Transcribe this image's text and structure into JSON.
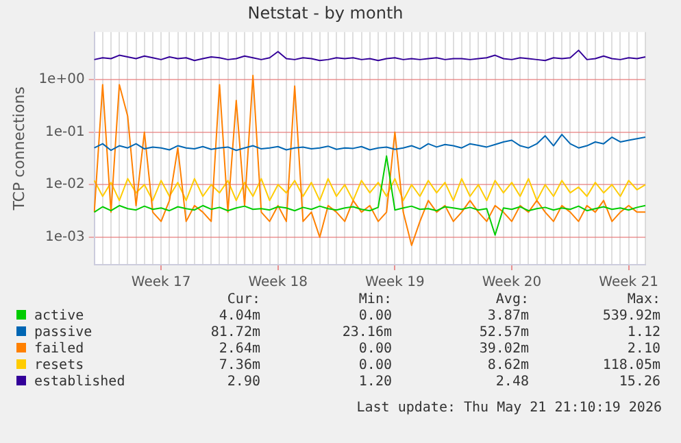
{
  "chart_data": {
    "type": "line",
    "title": "Netstat - by month",
    "ylabel": "TCP connections",
    "log": true,
    "grid": true,
    "legend": "bottom",
    "marker": "none",
    "line_style": "solid",
    "ylim": [
      0.0003,
      8
    ],
    "yticks": [
      {
        "value": 0.001,
        "label": "1e-03"
      },
      {
        "value": 0.01,
        "label": "1e-02"
      },
      {
        "value": 0.1,
        "label": "1e-01"
      },
      {
        "value": 1,
        "label": "1e+00"
      }
    ],
    "categories": [
      null,
      null,
      null,
      null,
      null,
      null,
      null,
      null,
      "Week 17",
      null,
      null,
      null,
      null,
      null,
      null,
      null,
      null,
      null,
      null,
      null,
      null,
      null,
      "Week 18",
      null,
      null,
      null,
      null,
      null,
      null,
      null,
      null,
      null,
      null,
      null,
      null,
      null,
      "Week 19",
      null,
      null,
      null,
      null,
      null,
      null,
      null,
      null,
      null,
      null,
      null,
      null,
      null,
      "Week 20",
      null,
      null,
      null,
      null,
      null,
      null,
      null,
      null,
      null,
      null,
      null,
      null,
      null,
      "Week 21",
      null,
      null
    ],
    "series": [
      {
        "name": "active",
        "color": "#00cc00",
        "values": [
          0.003,
          0.0038,
          0.0032,
          0.004,
          0.0035,
          0.0033,
          0.0039,
          0.0034,
          0.0036,
          0.0032,
          0.0038,
          0.0035,
          0.0033,
          0.004,
          0.0034,
          0.0037,
          0.0032,
          0.0036,
          0.0039,
          0.0034,
          0.0035,
          0.0033,
          0.0038,
          0.0036,
          0.0032,
          0.0037,
          0.0034,
          0.0039,
          0.0035,
          0.0033,
          0.0036,
          0.0038,
          0.0034,
          0.0032,
          0.0037,
          0.035,
          0.0033,
          0.0036,
          0.0039,
          0.0034,
          0.0035,
          0.0032,
          0.0038,
          0.0036,
          0.0034,
          0.0037,
          0.0033,
          0.0035,
          0.0011,
          0.0036,
          0.0034,
          0.0038,
          0.0032,
          0.0035,
          0.0037,
          0.0033,
          0.0036,
          0.0034,
          0.0039,
          0.0032,
          0.0035,
          0.0038,
          0.0034,
          0.0036,
          0.0033,
          0.0037,
          0.004
        ]
      },
      {
        "name": "passive",
        "color": "#0066b3",
        "values": [
          0.05,
          0.06,
          0.045,
          0.055,
          0.05,
          0.06,
          0.048,
          0.052,
          0.05,
          0.046,
          0.055,
          0.05,
          0.048,
          0.053,
          0.047,
          0.05,
          0.052,
          0.045,
          0.05,
          0.055,
          0.048,
          0.05,
          0.053,
          0.046,
          0.05,
          0.052,
          0.048,
          0.05,
          0.054,
          0.047,
          0.05,
          0.049,
          0.053,
          0.046,
          0.05,
          0.052,
          0.047,
          0.05,
          0.055,
          0.048,
          0.06,
          0.052,
          0.058,
          0.055,
          0.05,
          0.06,
          0.056,
          0.052,
          0.058,
          0.065,
          0.07,
          0.055,
          0.05,
          0.06,
          0.085,
          0.055,
          0.09,
          0.06,
          0.05,
          0.055,
          0.065,
          0.06,
          0.08,
          0.065,
          0.07,
          0.075,
          0.08
        ]
      },
      {
        "name": "failed",
        "color": "#ff8000",
        "values": [
          0.003,
          0.8,
          0.003,
          0.8,
          0.2,
          0.004,
          0.1,
          0.003,
          0.002,
          0.005,
          0.05,
          0.002,
          0.004,
          0.003,
          0.002,
          0.8,
          0.003,
          0.4,
          0.004,
          1.2,
          0.003,
          0.002,
          0.004,
          0.002,
          0.75,
          0.002,
          0.003,
          0.001,
          0.004,
          0.003,
          0.002,
          0.005,
          0.003,
          0.004,
          0.002,
          0.003,
          0.1,
          0.003,
          0.0007,
          0.002,
          0.005,
          0.003,
          0.004,
          0.002,
          0.003,
          0.005,
          0.003,
          0.002,
          0.004,
          0.003,
          0.002,
          0.004,
          0.003,
          0.005,
          0.003,
          0.002,
          0.004,
          0.003,
          0.002,
          0.004,
          0.003,
          0.005,
          0.002,
          0.003,
          0.004,
          0.003,
          0.003
        ]
      },
      {
        "name": "resets",
        "color": "#ffcc00",
        "values": [
          0.012,
          0.006,
          0.011,
          0.005,
          0.013,
          0.007,
          0.01,
          0.005,
          0.012,
          0.006,
          0.011,
          0.005,
          0.013,
          0.006,
          0.01,
          0.007,
          0.012,
          0.005,
          0.011,
          0.006,
          0.013,
          0.005,
          0.01,
          0.007,
          0.012,
          0.006,
          0.011,
          0.005,
          0.013,
          0.006,
          0.01,
          0.005,
          0.012,
          0.007,
          0.011,
          0.006,
          0.013,
          0.005,
          0.01,
          0.006,
          0.012,
          0.007,
          0.011,
          0.005,
          0.013,
          0.006,
          0.01,
          0.005,
          0.012,
          0.007,
          0.011,
          0.006,
          0.013,
          0.005,
          0.01,
          0.006,
          0.012,
          0.007,
          0.009,
          0.006,
          0.011,
          0.007,
          0.01,
          0.006,
          0.012,
          0.008,
          0.01
        ]
      },
      {
        "name": "established",
        "color": "#330099",
        "values": [
          2.4,
          2.6,
          2.5,
          2.9,
          2.7,
          2.5,
          2.8,
          2.6,
          2.4,
          2.7,
          2.5,
          2.6,
          2.3,
          2.5,
          2.7,
          2.6,
          2.4,
          2.5,
          2.8,
          2.6,
          2.4,
          2.6,
          3.4,
          2.5,
          2.4,
          2.6,
          2.5,
          2.3,
          2.4,
          2.6,
          2.5,
          2.6,
          2.4,
          2.5,
          2.3,
          2.5,
          2.6,
          2.4,
          2.5,
          2.4,
          2.5,
          2.6,
          2.4,
          2.5,
          2.5,
          2.4,
          2.5,
          2.6,
          2.9,
          2.5,
          2.4,
          2.6,
          2.5,
          2.4,
          2.3,
          2.6,
          2.5,
          2.6,
          3.6,
          2.4,
          2.5,
          2.8,
          2.5,
          2.4,
          2.6,
          2.5,
          2.7
        ]
      }
    ],
    "annotations": [
      "Cur:",
      "Min:",
      "Avg:",
      "Max:",
      "4.04m",
      "0.00",
      "3.87m",
      "539.92m",
      "81.72m",
      "23.16m",
      "52.57m",
      "1.12",
      "2.64m",
      "0.00",
      "39.02m",
      "2.10",
      "7.36m",
      "0.00",
      "8.62m",
      "118.05m",
      "2.90",
      "1.20",
      "2.48",
      "15.26",
      "Last update: Thu May 21 21:10:19 2026"
    ]
  }
}
